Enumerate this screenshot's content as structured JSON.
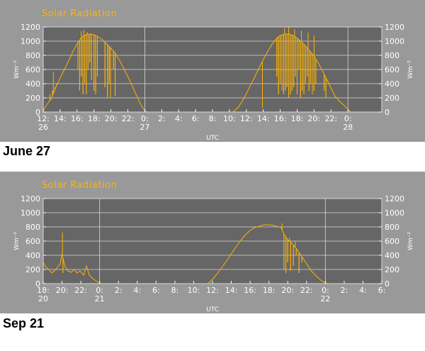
{
  "colors": {
    "panel_bg": "#999999",
    "plot_bg": "#666666",
    "grid": "#d8d8d8",
    "series": "#ffb300",
    "text": "#ffffff"
  },
  "chart_data": [
    {
      "type": "line",
      "title": "Solar Radiation",
      "xlabel": "UTC",
      "ylabel": "Wm⁻²",
      "ylim": [
        0,
        1200
      ],
      "yticks": [
        0,
        200,
        400,
        600,
        800,
        1000,
        1200
      ],
      "grid": true,
      "x_unit": "hours since 12:00 UTC Jun 26",
      "xlim": [
        0,
        40
      ],
      "xticks": [
        {
          "hour": 0,
          "label": "12:",
          "sub": "26"
        },
        {
          "hour": 2,
          "label": "14:",
          "sub": ""
        },
        {
          "hour": 4,
          "label": "16:",
          "sub": ""
        },
        {
          "hour": 6,
          "label": "18:",
          "sub": ""
        },
        {
          "hour": 8,
          "label": "20:",
          "sub": ""
        },
        {
          "hour": 10,
          "label": "22:",
          "sub": ""
        },
        {
          "hour": 12,
          "label": "0:",
          "sub": "27"
        },
        {
          "hour": 14,
          "label": "2:",
          "sub": ""
        },
        {
          "hour": 16,
          "label": "4:",
          "sub": ""
        },
        {
          "hour": 18,
          "label": "6:",
          "sub": ""
        },
        {
          "hour": 20,
          "label": "8:",
          "sub": ""
        },
        {
          "hour": 22,
          "label": "10:",
          "sub": ""
        },
        {
          "hour": 24,
          "label": "12:",
          "sub": ""
        },
        {
          "hour": 26,
          "label": "14:",
          "sub": ""
        },
        {
          "hour": 28,
          "label": "16:",
          "sub": ""
        },
        {
          "hour": 30,
          "label": "18:",
          "sub": ""
        },
        {
          "hour": 32,
          "label": "20:",
          "sub": ""
        },
        {
          "hour": 34,
          "label": "22:",
          "sub": ""
        },
        {
          "hour": 36,
          "label": "0:",
          "sub": "28"
        }
      ],
      "vlines": [
        12,
        36
      ],
      "envelope": [
        [
          0,
          20
        ],
        [
          0.3,
          80
        ],
        [
          0.7,
          150
        ],
        [
          1,
          200
        ],
        [
          1.5,
          350
        ],
        [
          2,
          480
        ],
        [
          2.5,
          600
        ],
        [
          3,
          720
        ],
        [
          3.5,
          850
        ],
        [
          4,
          960
        ],
        [
          4.5,
          1050
        ],
        [
          5,
          1090
        ],
        [
          5.5,
          1100
        ],
        [
          6,
          1090
        ],
        [
          6.5,
          1060
        ],
        [
          7,
          1020
        ],
        [
          7.5,
          960
        ],
        [
          8,
          900
        ],
        [
          8.5,
          830
        ],
        [
          9,
          730
        ],
        [
          9.5,
          620
        ],
        [
          10,
          500
        ],
        [
          10.5,
          370
        ],
        [
          11,
          240
        ],
        [
          11.5,
          110
        ],
        [
          12,
          20
        ],
        [
          12.3,
          0
        ],
        [
          22.4,
          0
        ],
        [
          23,
          60
        ],
        [
          23.5,
          150
        ],
        [
          24,
          260
        ],
        [
          24.5,
          380
        ],
        [
          25,
          500
        ],
        [
          25.5,
          620
        ],
        [
          26,
          740
        ],
        [
          26.5,
          850
        ],
        [
          27,
          950
        ],
        [
          27.5,
          1030
        ],
        [
          28,
          1080
        ],
        [
          28.5,
          1100
        ],
        [
          29,
          1100
        ],
        [
          29.5,
          1080
        ],
        [
          30,
          1040
        ],
        [
          30.5,
          990
        ],
        [
          31,
          930
        ],
        [
          31.5,
          860
        ],
        [
          32,
          790
        ],
        [
          32.5,
          690
        ],
        [
          33,
          580
        ],
        [
          33.5,
          460
        ],
        [
          34,
          340
        ],
        [
          34.5,
          220
        ],
        [
          35,
          150
        ],
        [
          35.5,
          100
        ],
        [
          36,
          40
        ],
        [
          36.3,
          0
        ]
      ],
      "dips": [
        [
          0.8,
          250
        ],
        [
          1.1,
          300
        ],
        [
          1.4,
          350
        ],
        [
          1.6,
          400
        ],
        [
          4.1,
          600
        ],
        [
          4.3,
          300
        ],
        [
          4.5,
          500
        ],
        [
          4.7,
          250
        ],
        [
          4.9,
          400
        ],
        [
          5.1,
          250
        ],
        [
          5.3,
          600
        ],
        [
          5.5,
          700
        ],
        [
          5.7,
          450
        ],
        [
          6,
          300
        ],
        [
          6.2,
          250
        ],
        [
          6.4,
          500
        ],
        [
          7.3,
          350
        ],
        [
          7.6,
          200
        ],
        [
          7.8,
          400
        ],
        [
          7.95,
          200
        ],
        [
          8.3,
          600
        ],
        [
          8.5,
          230
        ],
        [
          25.9,
          60
        ],
        [
          27.6,
          500
        ],
        [
          27.8,
          250
        ],
        [
          28,
          400
        ],
        [
          28.2,
          300
        ],
        [
          28.4,
          250
        ],
        [
          28.6,
          300
        ],
        [
          28.8,
          350
        ],
        [
          29,
          200
        ],
        [
          29.2,
          250
        ],
        [
          29.4,
          300
        ],
        [
          29.6,
          350
        ],
        [
          29.8,
          500
        ],
        [
          30,
          250
        ],
        [
          30.2,
          600
        ],
        [
          30.4,
          200
        ],
        [
          30.6,
          300
        ],
        [
          30.8,
          250
        ],
        [
          31,
          400
        ],
        [
          31.2,
          500
        ],
        [
          31.4,
          300
        ],
        [
          31.6,
          400
        ],
        [
          31.8,
          250
        ],
        [
          32,
          300
        ],
        [
          32.2,
          400
        ],
        [
          33.2,
          300
        ],
        [
          33.4,
          200
        ],
        [
          33.6,
          450
        ]
      ],
      "spikes": [
        [
          1.2,
          560
        ],
        [
          4.5,
          1140
        ],
        [
          4.8,
          1160
        ],
        [
          5.2,
          1130
        ],
        [
          7.8,
          930
        ],
        [
          28.5,
          1180
        ],
        [
          29,
          1200
        ],
        [
          29.7,
          1170
        ],
        [
          30.5,
          1150
        ],
        [
          31.3,
          1120
        ],
        [
          32,
          1080
        ]
      ]
    },
    {
      "type": "line",
      "title": "Solar Radiation",
      "xlabel": "UTC",
      "ylabel": "Wm⁻²",
      "ylim": [
        0,
        1200
      ],
      "yticks": [
        0,
        200,
        400,
        600,
        800,
        1000,
        1200
      ],
      "grid": true,
      "x_unit": "hours since 18:00 UTC Sep 20",
      "xlim": [
        0,
        36
      ],
      "xticks": [
        {
          "hour": 0,
          "label": "18:",
          "sub": "20"
        },
        {
          "hour": 2,
          "label": "20:",
          "sub": ""
        },
        {
          "hour": 4,
          "label": "22:",
          "sub": ""
        },
        {
          "hour": 6,
          "label": "0:",
          "sub": "21"
        },
        {
          "hour": 8,
          "label": "2:",
          "sub": ""
        },
        {
          "hour": 10,
          "label": "4:",
          "sub": ""
        },
        {
          "hour": 12,
          "label": "6:",
          "sub": ""
        },
        {
          "hour": 14,
          "label": "8:",
          "sub": ""
        },
        {
          "hour": 16,
          "label": "10:",
          "sub": ""
        },
        {
          "hour": 18,
          "label": "12:",
          "sub": ""
        },
        {
          "hour": 20,
          "label": "14:",
          "sub": ""
        },
        {
          "hour": 22,
          "label": "16:",
          "sub": ""
        },
        {
          "hour": 24,
          "label": "18:",
          "sub": ""
        },
        {
          "hour": 26,
          "label": "20:",
          "sub": ""
        },
        {
          "hour": 28,
          "label": "22:",
          "sub": ""
        },
        {
          "hour": 30,
          "label": "0:",
          "sub": "22"
        },
        {
          "hour": 32,
          "label": "2:",
          "sub": ""
        },
        {
          "hour": 34,
          "label": "4:",
          "sub": ""
        },
        {
          "hour": 36,
          "label": "6:",
          "sub": ""
        }
      ],
      "vlines": [
        6,
        30
      ],
      "envelope": [
        [
          0,
          300
        ],
        [
          0.3,
          230
        ],
        [
          0.6,
          200
        ],
        [
          0.9,
          150
        ],
        [
          1.2,
          180
        ],
        [
          1.5,
          230
        ],
        [
          1.8,
          280
        ],
        [
          2,
          420
        ],
        [
          2.3,
          250
        ],
        [
          2.6,
          180
        ],
        [
          3,
          160
        ],
        [
          3.3,
          200
        ],
        [
          3.6,
          150
        ],
        [
          3.9,
          180
        ],
        [
          4.3,
          120
        ],
        [
          4.6,
          250
        ],
        [
          4.9,
          120
        ],
        [
          5.2,
          80
        ],
        [
          5.6,
          40
        ],
        [
          6,
          10
        ],
        [
          6.2,
          0
        ],
        [
          17.5,
          0
        ],
        [
          18,
          60
        ],
        [
          18.5,
          140
        ],
        [
          19,
          230
        ],
        [
          19.5,
          320
        ],
        [
          20,
          420
        ],
        [
          20.5,
          520
        ],
        [
          21,
          610
        ],
        [
          21.5,
          690
        ],
        [
          22,
          750
        ],
        [
          22.5,
          790
        ],
        [
          23,
          810
        ],
        [
          23.5,
          830
        ],
        [
          24,
          830
        ],
        [
          24.5,
          820
        ],
        [
          25,
          800
        ],
        [
          25.3,
          790
        ],
        [
          25.6,
          700
        ],
        [
          26,
          620
        ],
        [
          26.5,
          560
        ],
        [
          27,
          480
        ],
        [
          27.5,
          380
        ],
        [
          28,
          280
        ],
        [
          28.5,
          180
        ],
        [
          29,
          110
        ],
        [
          29.5,
          50
        ],
        [
          30,
          10
        ],
        [
          30.2,
          0
        ]
      ],
      "dips": [
        [
          2.1,
          150
        ],
        [
          25.6,
          200
        ],
        [
          25.8,
          150
        ],
        [
          26,
          300
        ],
        [
          26.3,
          180
        ],
        [
          26.6,
          250
        ],
        [
          26.9,
          400
        ],
        [
          27.2,
          150
        ],
        [
          27.5,
          300
        ]
      ],
      "spikes": [
        [
          2.05,
          720
        ],
        [
          25.4,
          850
        ],
        [
          26.2,
          650
        ],
        [
          26.8,
          600
        ]
      ]
    }
  ],
  "date_labels": [
    "June 27",
    "Sep 21"
  ]
}
